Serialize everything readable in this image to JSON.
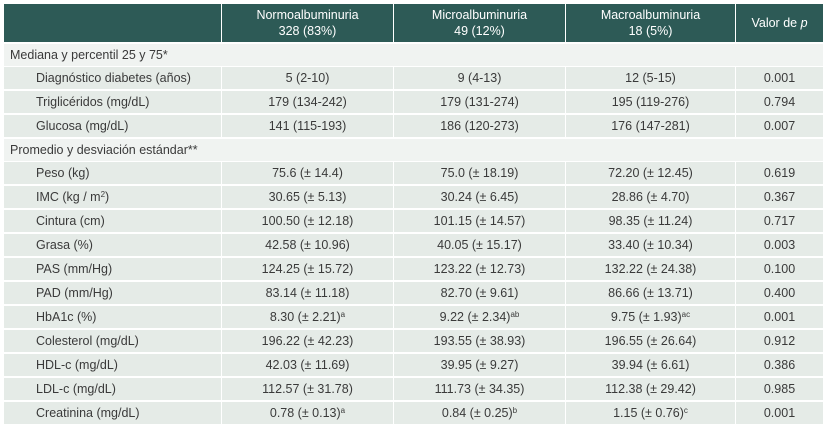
{
  "header": {
    "col0": "",
    "col1_line1": "Normoalbuminuria",
    "col1_line2": "328 (83%)",
    "col2_line1": "Microalbuminuria",
    "col2_line2": "49 (12%)",
    "col3_line1": "Macroalbuminuria",
    "col3_line2": "18 (5%)",
    "col4_text": "Valor de ",
    "col4_italic": "p"
  },
  "section1": {
    "title": "Mediana y percentil 25 y 75*"
  },
  "section2": {
    "title": "Promedio y desviación estándar**"
  },
  "rows1": [
    {
      "label": "Diagnóstico diabetes (años)",
      "normo": "5 (2-10)",
      "micro": "9 (4-13)",
      "macro": "12 (5-15)",
      "p": "0.001"
    },
    {
      "label": "Triglicéridos (mg/dL)",
      "normo": "179 (134-242)",
      "micro": "179 (131-274)",
      "macro": "195 (119-276)",
      "p": "0.794"
    },
    {
      "label": "Glucosa (mg/dL)",
      "normo": "141 (115-193)",
      "micro": "186 (120-273)",
      "macro": "176 (147-281)",
      "p": "0.007"
    }
  ],
  "rows2": [
    {
      "label": "Peso (kg)",
      "normo": "75.6 (± 14.4)",
      "micro": "75.0 (± 18.19)",
      "macro": "72.20 (± 12.45)",
      "p": "0.619"
    },
    {
      "label": "IMC (kg / m",
      "label_sup": "2",
      "label_tail": ")",
      "normo": "30.65 (± 5.13)",
      "micro": "30.24 (± 6.45)",
      "macro": "28.86 (± 4.70)",
      "p": "0.367"
    },
    {
      "label": "Cintura (cm)",
      "normo": "100.50 (± 12.18)",
      "micro": "101.15 (± 14.57)",
      "macro": "98.35 (± 11.24)",
      "p": "0.717"
    },
    {
      "label": "Grasa (%)",
      "normo": "42.58 (± 10.96)",
      "micro": "40.05 (± 15.17)",
      "macro": "33.40 (± 10.34)",
      "p": "0.003"
    },
    {
      "label": "PAS (mm/Hg)",
      "normo": "124.25 (± 15.72)",
      "micro": "123.22 (± 12.73)",
      "macro": "132.22 (± 24.38)",
      "p": "0.100"
    },
    {
      "label": "PAD (mm/Hg)",
      "normo": "83.14 (± 11.18)",
      "micro": "82.70 (± 9.61)",
      "macro": "86.66 (± 13.71)",
      "p": "0.400"
    },
    {
      "label": "HbA1c (%)",
      "normo": "8.30 (± 2.21)",
      "normo_sup": "a",
      "micro": "9.22 (± 2.34)",
      "micro_sup": "ab",
      "macro": "9.75 (± 1.93)",
      "macro_sup": "ac",
      "p": "0.001"
    },
    {
      "label": "Colesterol (mg/dL)",
      "normo": "196.22 (± 42.23)",
      "micro": "193.55 (± 38.93)",
      "macro": "196.55 (± 26.64)",
      "p": "0.912"
    },
    {
      "label": "HDL-c (mg/dL)",
      "normo": "42.03 (± 11.69)",
      "micro": "39.95 (± 9.27)",
      "macro": "39.94 (± 6.61)",
      "p": "0.386"
    },
    {
      "label": "LDL-c (mg/dL)",
      "normo": "112.57 (± 31.78)",
      "micro": "111.73 (± 34.35)",
      "macro": "112.38 (± 29.42)",
      "p": "0.985"
    },
    {
      "label": "Creatinina (mg/dL)",
      "normo": "0.78 (± 0.13)",
      "normo_sup": "a",
      "micro": "0.84 (± 0.25)",
      "micro_sup": "b",
      "macro": "1.15 (± 0.76)",
      "macro_sup": "c",
      "p": "0.001"
    }
  ]
}
